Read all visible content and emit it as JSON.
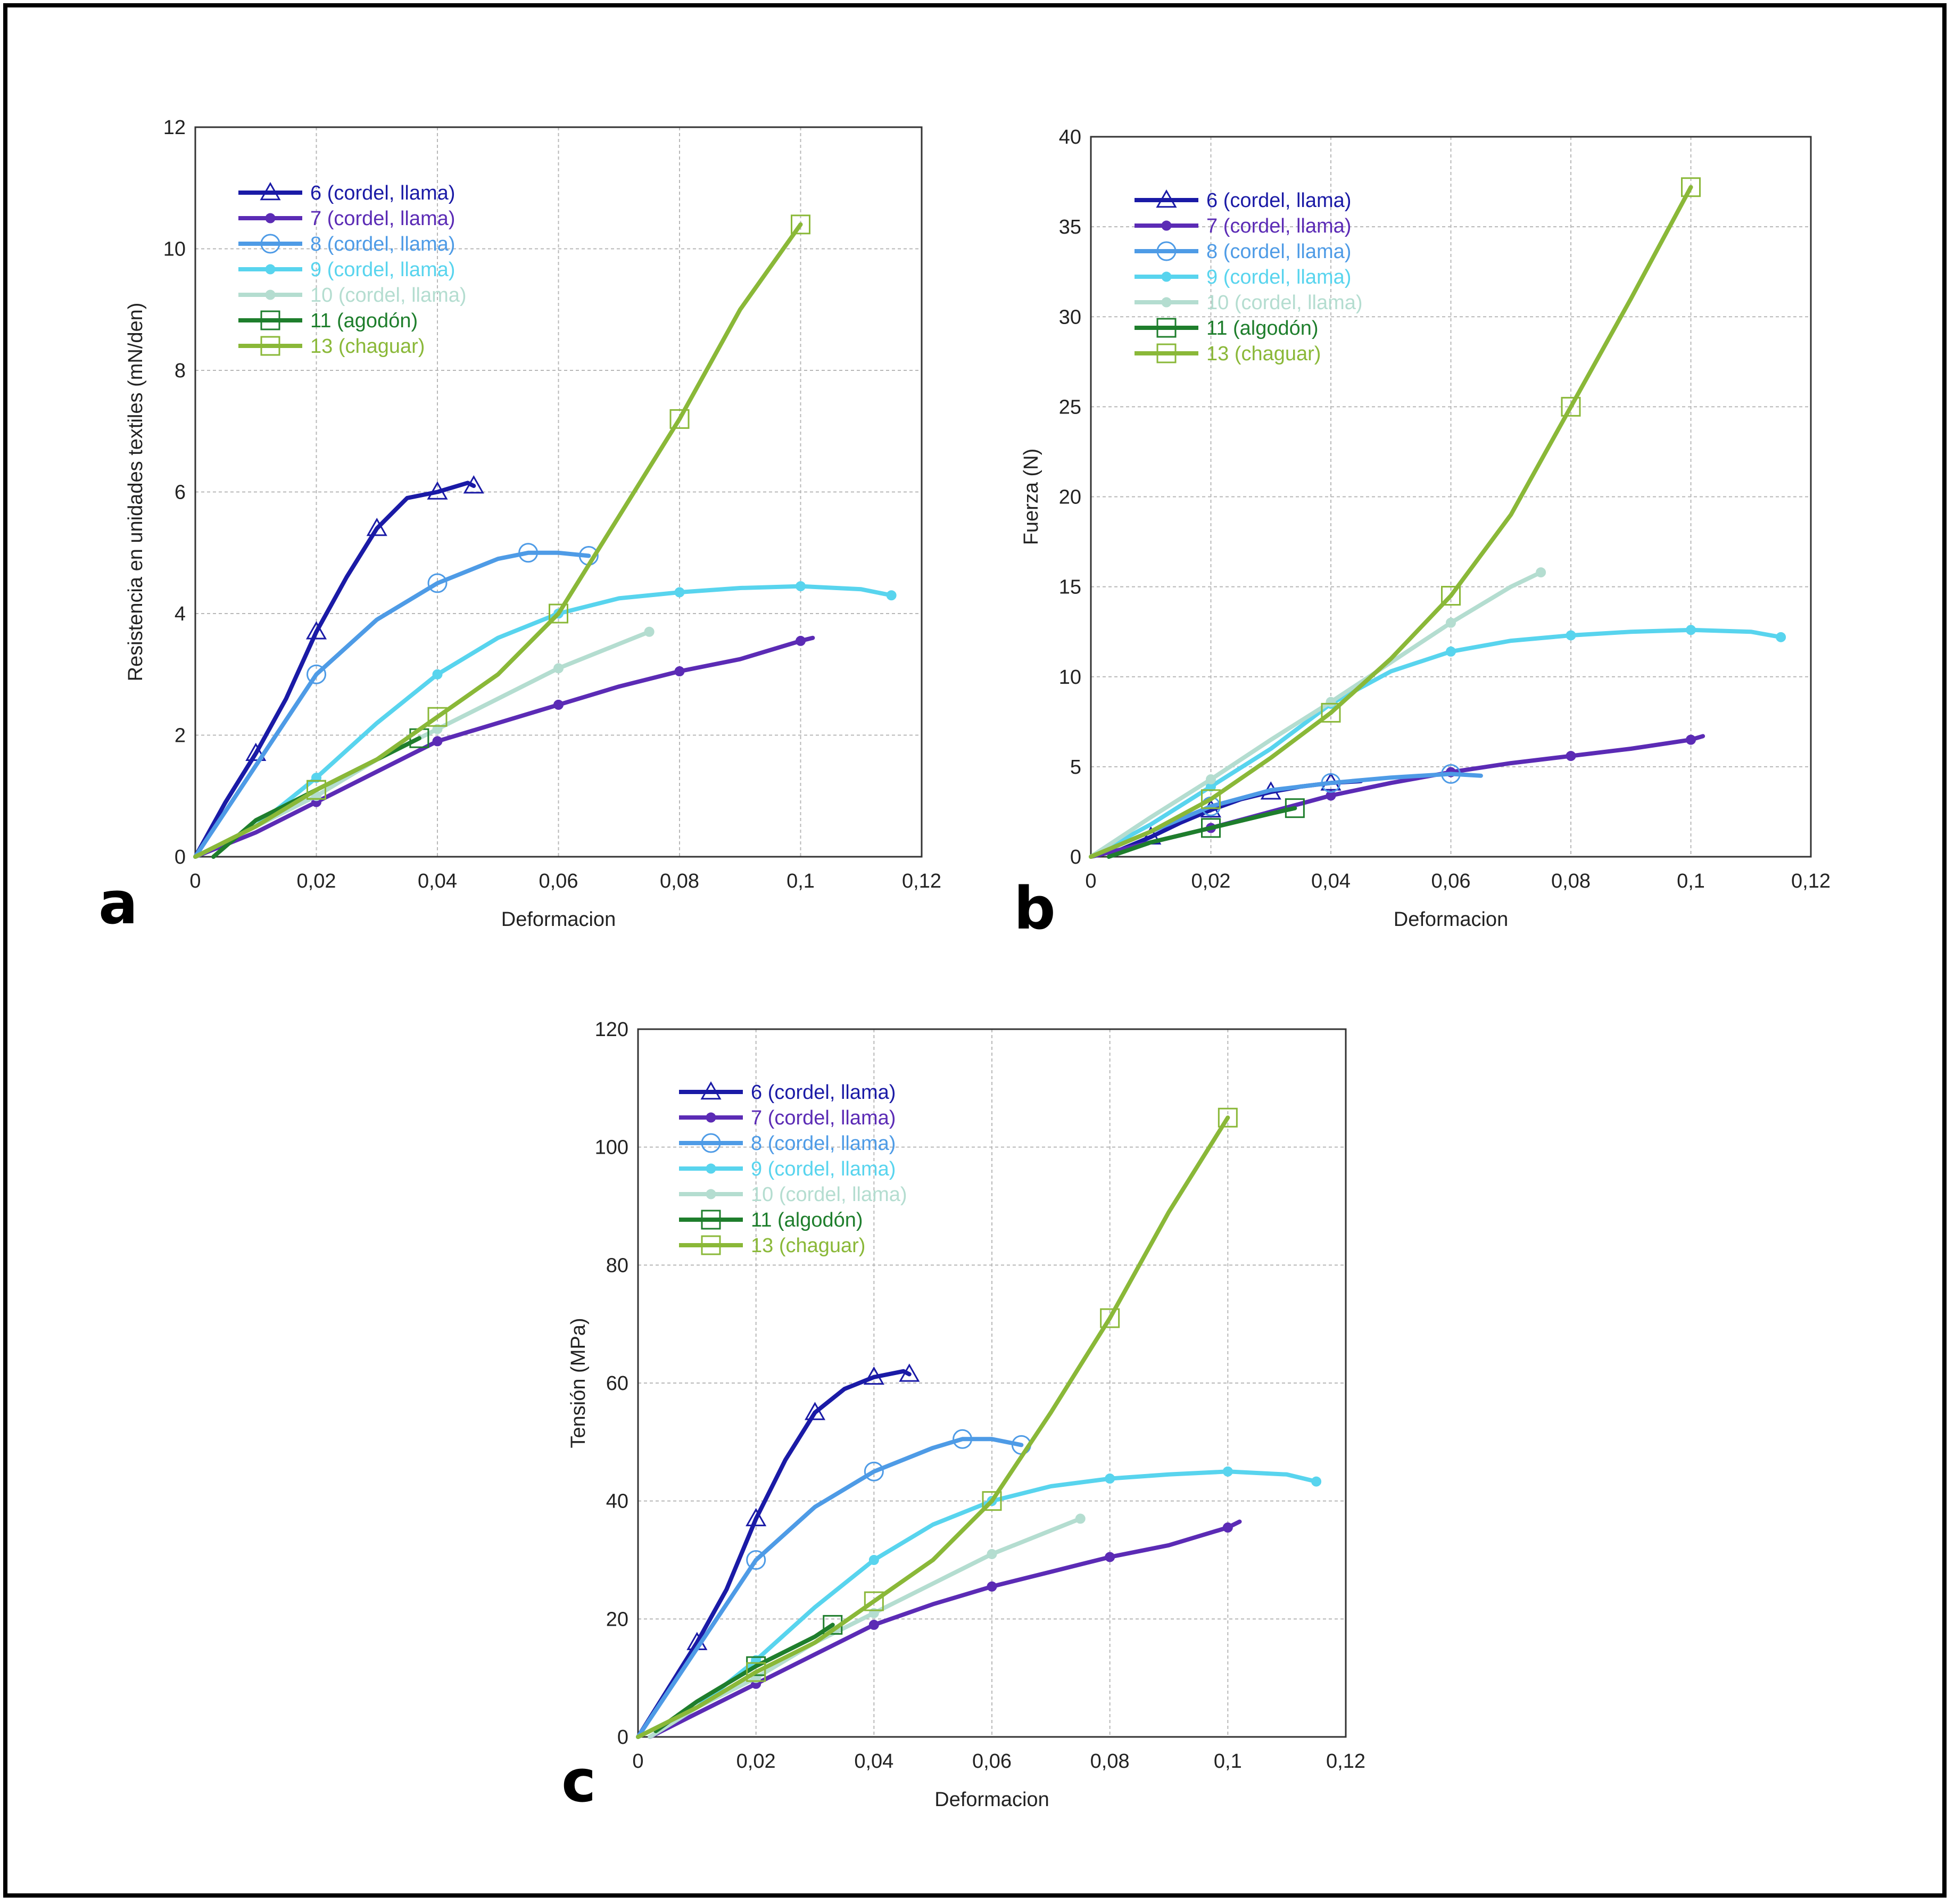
{
  "chart_data": [
    {
      "type": "line",
      "panel_label": "a",
      "xlabel": "Deformacion",
      "ylabel": "Resistencia en unidades textiles (mN/den)",
      "xlim": [
        0,
        0.12
      ],
      "ylim": [
        0,
        12
      ],
      "xticks": [
        "0",
        "0,02",
        "0,04",
        "0,06",
        "0,08",
        "0,1",
        "0,12"
      ],
      "yticks": [
        "0",
        "2",
        "4",
        "6",
        "8",
        "10",
        "12"
      ],
      "grid": true,
      "legend_position": "top-left",
      "series": [
        {
          "name": "6 (cordel, llama)",
          "color": "#1a1aa6",
          "marker": "triangle",
          "x": [
            0,
            0.005,
            0.01,
            0.015,
            0.02,
            0.025,
            0.03,
            0.035,
            0.04,
            0.045,
            0.046
          ],
          "y": [
            0,
            0.9,
            1.7,
            2.6,
            3.7,
            4.6,
            5.4,
            5.9,
            6.0,
            6.15,
            6.1
          ]
        },
        {
          "name": "7 (cordel, llama)",
          "color": "#5b2bb5",
          "marker": "dot",
          "x": [
            0,
            0.01,
            0.02,
            0.03,
            0.04,
            0.05,
            0.06,
            0.07,
            0.08,
            0.09,
            0.1,
            0.102
          ],
          "y": [
            0,
            0.4,
            0.9,
            1.4,
            1.9,
            2.2,
            2.5,
            2.8,
            3.05,
            3.25,
            3.55,
            3.6
          ]
        },
        {
          "name": "8 (cordel, llama)",
          "color": "#4e9be6",
          "marker": "circle",
          "x": [
            0,
            0.01,
            0.02,
            0.03,
            0.04,
            0.05,
            0.055,
            0.06,
            0.065
          ],
          "y": [
            0,
            1.5,
            3.0,
            3.9,
            4.5,
            4.9,
            5.0,
            5.0,
            4.95
          ]
        },
        {
          "name": "9 (cordel, llama)",
          "color": "#58d4ee",
          "marker": "dot",
          "x": [
            0,
            0.01,
            0.02,
            0.03,
            0.04,
            0.05,
            0.06,
            0.07,
            0.08,
            0.09,
            0.1,
            0.11,
            0.115
          ],
          "y": [
            0,
            0.5,
            1.3,
            2.2,
            3.0,
            3.6,
            4.0,
            4.25,
            4.35,
            4.42,
            4.45,
            4.4,
            4.3
          ]
        },
        {
          "name": "10 (cordel, llama)",
          "color": "#b4ddd0",
          "marker": "dot",
          "x": [
            0,
            0.01,
            0.02,
            0.03,
            0.04,
            0.05,
            0.06,
            0.07,
            0.075
          ],
          "y": [
            0,
            0.5,
            1.0,
            1.6,
            2.1,
            2.6,
            3.1,
            3.5,
            3.7
          ]
        },
        {
          "name": "11 (agodón)",
          "color": "#1e7e2c",
          "marker": "square",
          "x": [
            0.003,
            0.01,
            0.02,
            0.03,
            0.037
          ],
          "y": [
            0,
            0.6,
            1.1,
            1.6,
            1.95
          ]
        },
        {
          "name": "13 (chaguar)",
          "color": "#8ab838",
          "marker": "square",
          "x": [
            0,
            0.01,
            0.02,
            0.03,
            0.04,
            0.05,
            0.06,
            0.07,
            0.08,
            0.09,
            0.1
          ],
          "y": [
            0,
            0.5,
            1.1,
            1.6,
            2.3,
            3.0,
            4.0,
            5.6,
            7.2,
            9.0,
            10.4
          ]
        }
      ]
    },
    {
      "type": "line",
      "panel_label": "b",
      "xlabel": "Deformacion",
      "ylabel": "Fuerza (N)",
      "xlim": [
        0,
        0.12
      ],
      "ylim": [
        0,
        40
      ],
      "xticks": [
        "0",
        "0,02",
        "0,04",
        "0,06",
        "0,08",
        "0,1",
        "0,12"
      ],
      "yticks": [
        "0",
        "5",
        "10",
        "15",
        "20",
        "25",
        "30",
        "35",
        "40"
      ],
      "grid": true,
      "legend_position": "top-left",
      "series": [
        {
          "name": "6 (cordel, llama)",
          "color": "#1a1aa6",
          "marker": "triangle",
          "x": [
            0,
            0.005,
            0.01,
            0.015,
            0.02,
            0.025,
            0.03,
            0.035,
            0.04,
            0.045
          ],
          "y": [
            0,
            0.4,
            1.1,
            1.9,
            2.6,
            3.2,
            3.6,
            3.9,
            4.1,
            4.2
          ]
        },
        {
          "name": "7 (cordel, llama)",
          "color": "#5b2bb5",
          "marker": "dot",
          "x": [
            0,
            0.01,
            0.02,
            0.03,
            0.04,
            0.05,
            0.06,
            0.07,
            0.08,
            0.09,
            0.1,
            0.102
          ],
          "y": [
            0,
            0.8,
            1.6,
            2.5,
            3.4,
            4.1,
            4.7,
            5.2,
            5.6,
            6.0,
            6.5,
            6.7
          ]
        },
        {
          "name": "8 (cordel, llama)",
          "color": "#4e9be6",
          "marker": "circle",
          "x": [
            0,
            0.01,
            0.02,
            0.03,
            0.04,
            0.05,
            0.06,
            0.065
          ],
          "y": [
            0,
            1.4,
            2.8,
            3.7,
            4.1,
            4.4,
            4.6,
            4.5
          ]
        },
        {
          "name": "9 (cordel, llama)",
          "color": "#58d4ee",
          "marker": "dot",
          "x": [
            0,
            0.01,
            0.02,
            0.03,
            0.04,
            0.05,
            0.06,
            0.07,
            0.08,
            0.09,
            0.1,
            0.11,
            0.115
          ],
          "y": [
            0,
            1.8,
            3.9,
            6.0,
            8.5,
            10.3,
            11.4,
            12.0,
            12.3,
            12.5,
            12.6,
            12.5,
            12.2
          ]
        },
        {
          "name": "10  (cordel, llama)",
          "color": "#b4ddd0",
          "marker": "dot",
          "x": [
            0,
            0.01,
            0.02,
            0.03,
            0.04,
            0.05,
            0.06,
            0.07,
            0.075
          ],
          "y": [
            0,
            2.2,
            4.3,
            6.5,
            8.6,
            10.8,
            13.0,
            15.0,
            15.8
          ]
        },
        {
          "name": "11 (algodón)",
          "color": "#1e7e2c",
          "marker": "square",
          "x": [
            0.003,
            0.01,
            0.02,
            0.03,
            0.034
          ],
          "y": [
            0,
            0.8,
            1.6,
            2.4,
            2.7
          ]
        },
        {
          "name": "13 (chaguar)",
          "color": "#8ab838",
          "marker": "square",
          "x": [
            0,
            0.01,
            0.02,
            0.03,
            0.04,
            0.05,
            0.06,
            0.07,
            0.08,
            0.09,
            0.1
          ],
          "y": [
            0,
            1.4,
            3.2,
            5.5,
            8.0,
            11.0,
            14.5,
            19.0,
            25.0,
            31.0,
            37.2
          ]
        }
      ]
    },
    {
      "type": "line",
      "panel_label": "c",
      "xlabel": "Deformacion",
      "ylabel": "Tensión (MPa)",
      "xlim": [
        0,
        0.12
      ],
      "ylim": [
        0,
        120
      ],
      "xticks": [
        "0",
        "0,02",
        "0,04",
        "0,06",
        "0,08",
        "0,1",
        "0,12"
      ],
      "yticks": [
        "0",
        "20",
        "40",
        "60",
        "80",
        "100",
        "120"
      ],
      "grid": true,
      "legend_position": "top-left",
      "series": [
        {
          "name": "6 (cordel, llama)",
          "color": "#1a1aa6",
          "marker": "triangle",
          "x": [
            0,
            0.005,
            0.01,
            0.015,
            0.02,
            0.025,
            0.03,
            0.035,
            0.04,
            0.045,
            0.046
          ],
          "y": [
            0,
            8,
            16,
            25,
            37,
            47,
            55,
            59,
            61,
            62,
            61.5
          ]
        },
        {
          "name": "7 (cordel, llama)",
          "color": "#5b2bb5",
          "marker": "dot",
          "x": [
            0.002,
            0.01,
            0.02,
            0.03,
            0.04,
            0.05,
            0.06,
            0.07,
            0.08,
            0.09,
            0.1,
            0.102
          ],
          "y": [
            0,
            4,
            9,
            14,
            19,
            22.5,
            25.5,
            28,
            30.5,
            32.5,
            35.5,
            36.5
          ]
        },
        {
          "name": "8 (cordel, llama)",
          "color": "#4e9be6",
          "marker": "circle",
          "x": [
            0,
            0.01,
            0.02,
            0.03,
            0.04,
            0.05,
            0.055,
            0.06,
            0.065
          ],
          "y": [
            0,
            15,
            30,
            39,
            45,
            49,
            50.5,
            50.5,
            49.5
          ]
        },
        {
          "name": "9 (cordel, llama)",
          "color": "#58d4ee",
          "marker": "dot",
          "x": [
            0,
            0.01,
            0.02,
            0.03,
            0.04,
            0.05,
            0.06,
            0.07,
            0.08,
            0.09,
            0.1,
            0.11,
            0.115
          ],
          "y": [
            0,
            5,
            13,
            22,
            30,
            36,
            40,
            42.5,
            43.8,
            44.5,
            45,
            44.5,
            43.3
          ]
        },
        {
          "name": "10 (cordel, llama)",
          "color": "#b4ddd0",
          "marker": "dot",
          "x": [
            0.002,
            0.01,
            0.02,
            0.03,
            0.04,
            0.05,
            0.06,
            0.07,
            0.075
          ],
          "y": [
            0,
            5,
            10,
            16,
            21,
            26,
            31,
            35,
            37
          ]
        },
        {
          "name": "11 (algodón)",
          "color": "#1e7e2c",
          "marker": "square",
          "x": [
            0.003,
            0.01,
            0.02,
            0.03,
            0.033
          ],
          "y": [
            1,
            6,
            12,
            17,
            19
          ]
        },
        {
          "name": "13 (chaguar)",
          "color": "#8ab838",
          "marker": "square",
          "x": [
            0,
            0.01,
            0.02,
            0.03,
            0.04,
            0.05,
            0.06,
            0.07,
            0.08,
            0.09,
            0.1
          ],
          "y": [
            0,
            5,
            11,
            16,
            23,
            30,
            40,
            55,
            71,
            89,
            105
          ]
        }
      ]
    }
  ]
}
